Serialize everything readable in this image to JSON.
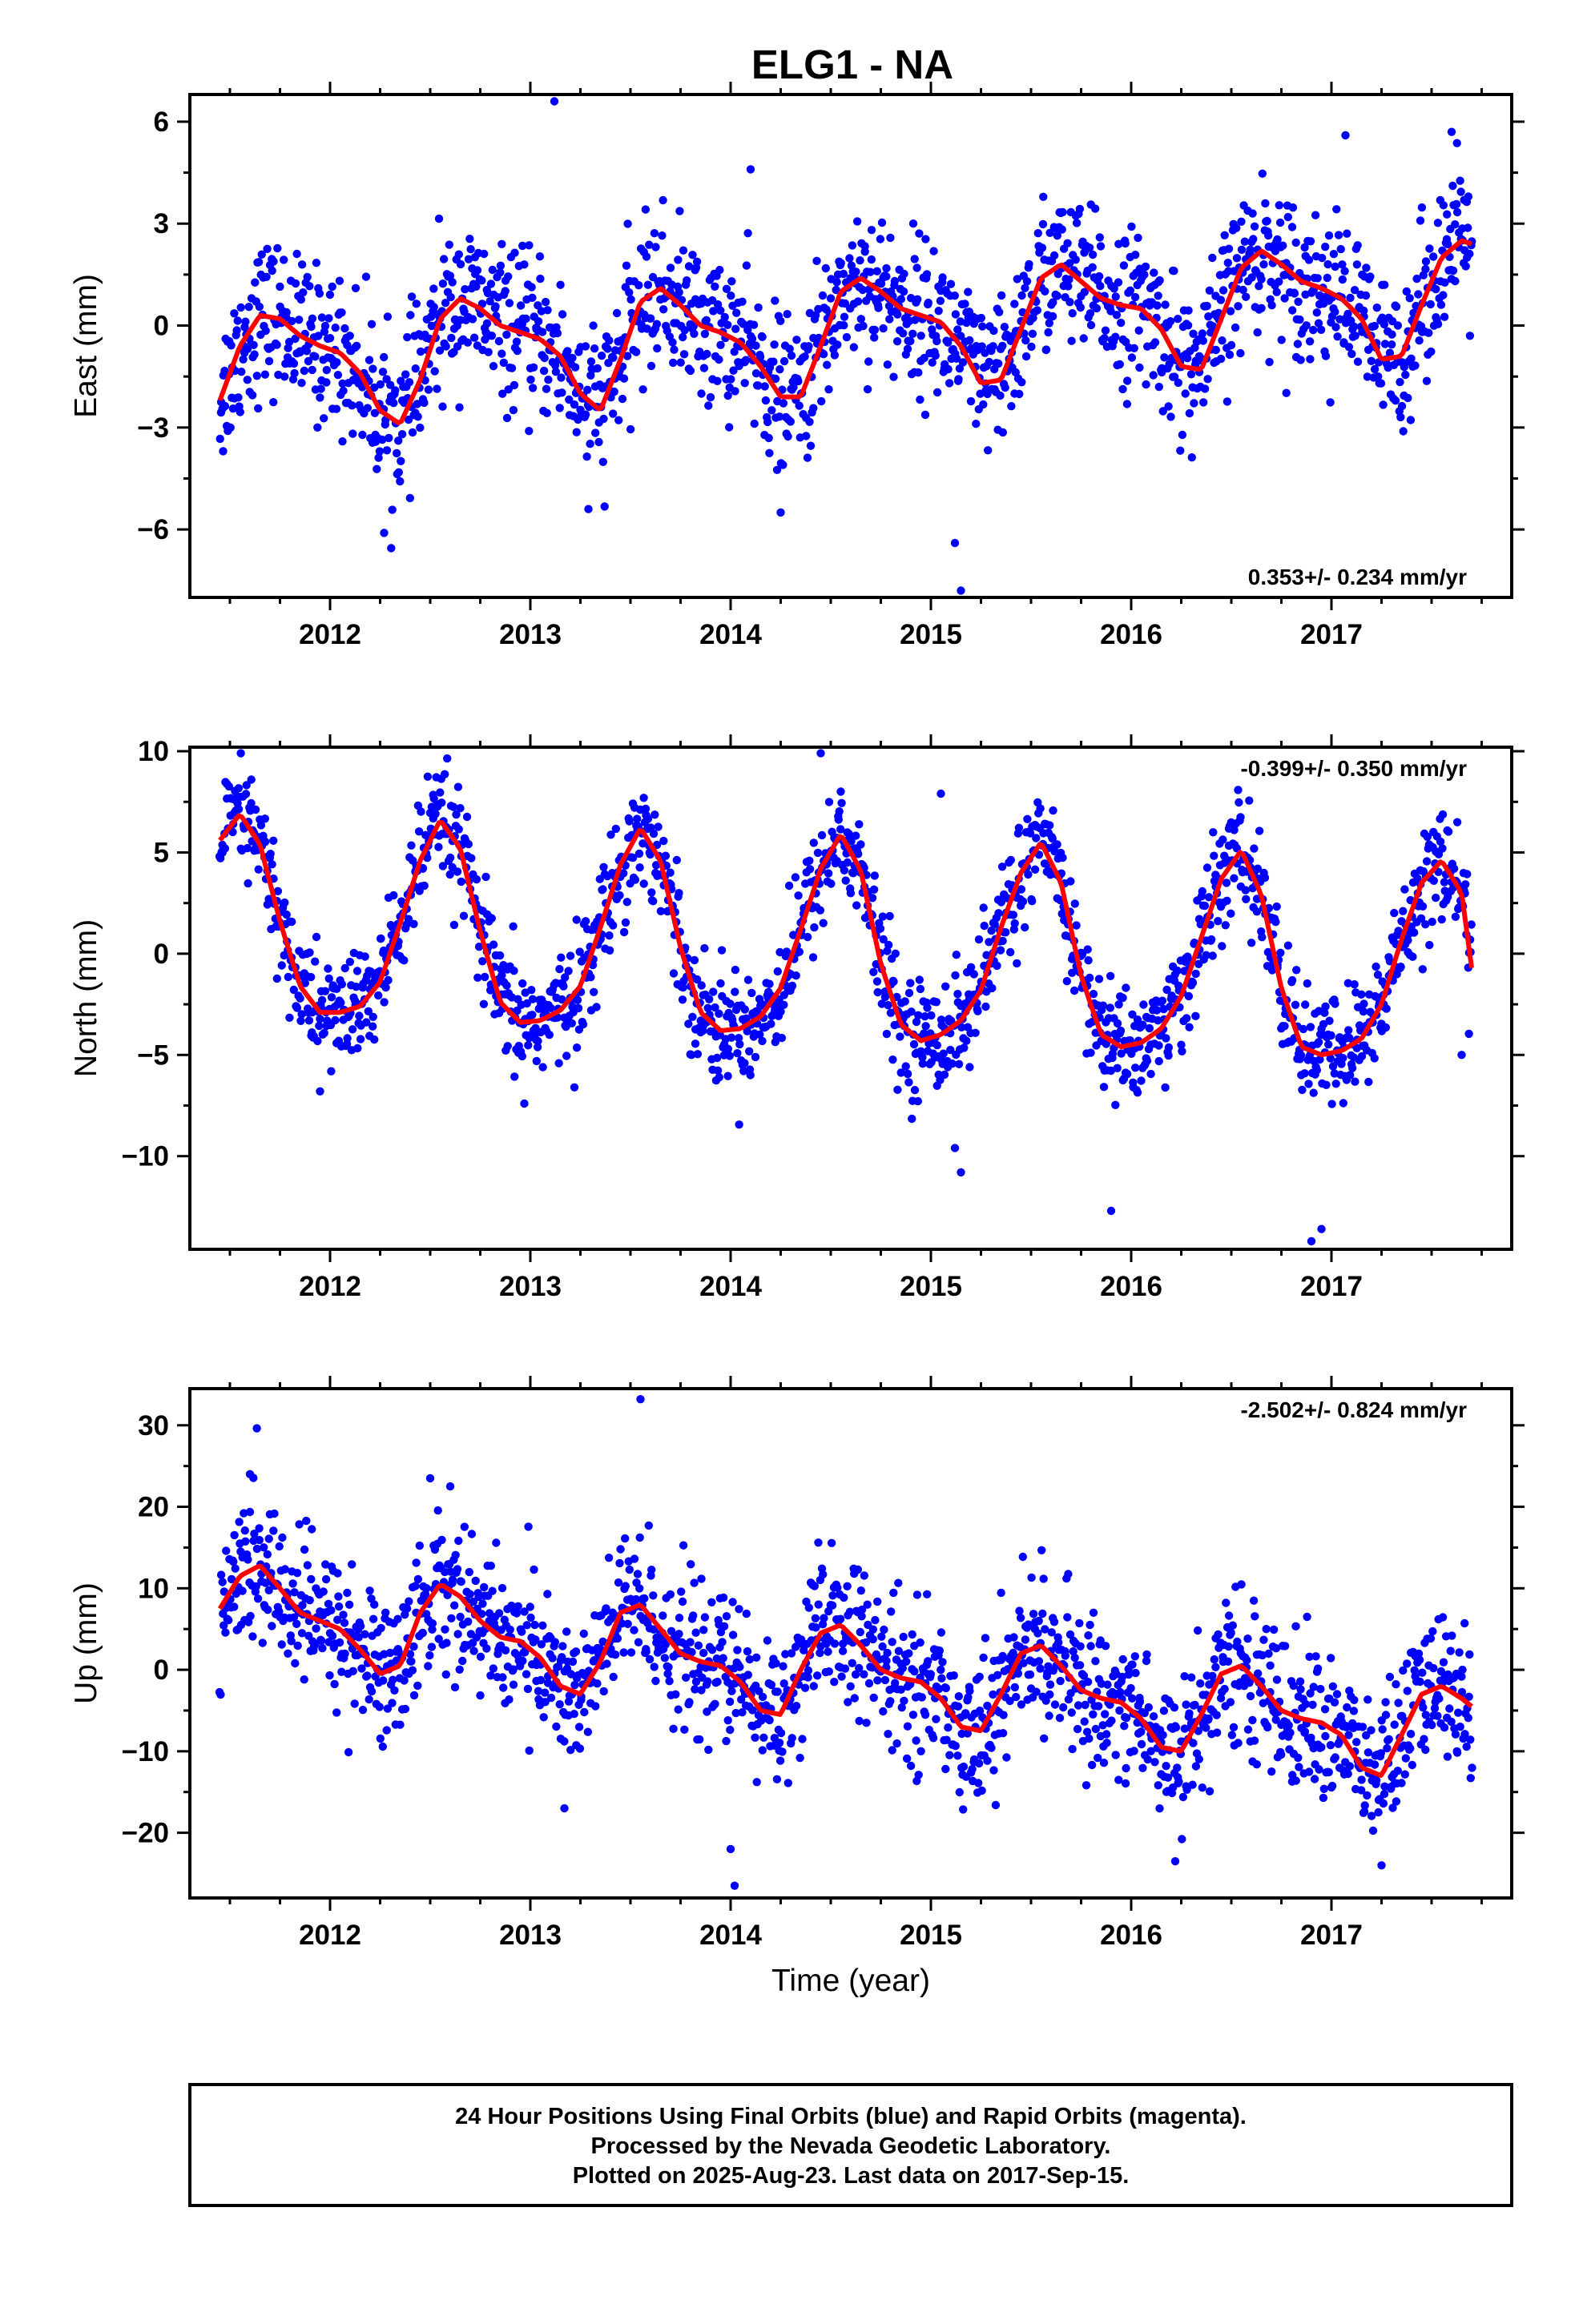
{
  "title": "ELG1 - NA",
  "colors": {
    "final_points": "#0000ff",
    "model_curve": "#ff0000",
    "frame": "#000000"
  },
  "chart_data": [
    {
      "type": "scatter",
      "name": "East",
      "ylabel": "East (mm)",
      "xlim": [
        2011.3,
        2017.9
      ],
      "ylim": [
        -8.0,
        6.8
      ],
      "xticks": [
        2012,
        2013,
        2014,
        2015,
        2016,
        2017
      ],
      "yticks": [
        -6,
        -3,
        0,
        3,
        6
      ],
      "tick_labels": [
        "−6",
        "−3",
        "0",
        "3",
        "6"
      ],
      "x_tick_labels": [
        "2012",
        "2013",
        "2014",
        "2015",
        "2016",
        "2017"
      ],
      "rate": "0.353+/- 0.234 mm/yr",
      "model": {
        "x": [
          2011.45,
          2011.55,
          2011.65,
          2011.75,
          2011.85,
          2011.95,
          2012.05,
          2012.15,
          2012.25,
          2012.35,
          2012.45,
          2012.55,
          2012.65,
          2012.75,
          2012.85,
          2012.95,
          2013.05,
          2013.15,
          2013.25,
          2013.35,
          2013.45,
          2013.55,
          2013.65,
          2013.75,
          2013.85,
          2013.95,
          2014.05,
          2014.15,
          2014.25,
          2014.35,
          2014.45,
          2014.55,
          2014.65,
          2014.75,
          2014.85,
          2014.95,
          2015.05,
          2015.15,
          2015.25,
          2015.35,
          2015.45,
          2015.55,
          2015.65,
          2015.75,
          2015.85,
          2015.95,
          2016.05,
          2016.15,
          2016.25,
          2016.35,
          2016.45,
          2016.55,
          2016.65,
          2016.75,
          2016.85,
          2016.95,
          2017.05,
          2017.15,
          2017.25,
          2017.35,
          2017.45,
          2017.55,
          2017.65,
          2017.7
        ],
        "y": [
          -2.2,
          -0.6,
          0.3,
          0.2,
          -0.3,
          -0.6,
          -0.8,
          -1.4,
          -2.5,
          -2.9,
          -1.6,
          0.2,
          0.8,
          0.5,
          0.0,
          -0.2,
          -0.4,
          -0.9,
          -2.0,
          -2.5,
          -1.0,
          0.7,
          1.1,
          0.6,
          0.0,
          -0.2,
          -0.5,
          -1.2,
          -2.1,
          -2.1,
          -0.6,
          1.0,
          1.4,
          1.0,
          0.5,
          0.3,
          0.1,
          -0.6,
          -1.7,
          -1.6,
          -0.1,
          1.4,
          1.8,
          1.3,
          0.8,
          0.6,
          0.5,
          -0.1,
          -1.2,
          -1.3,
          0.2,
          1.7,
          2.2,
          1.8,
          1.3,
          1.1,
          0.8,
          0.2,
          -1.0,
          -0.9,
          0.6,
          2.0,
          2.5,
          2.4
        ]
      },
      "points_summary": {
        "model_key": "model",
        "spread": 1.1,
        "outliers": [
          [
            2013.12,
            6.6
          ],
          [
            2014.1,
            4.6
          ],
          [
            2014.25,
            -5.5
          ],
          [
            2015.15,
            -7.8
          ],
          [
            2015.12,
            -6.4
          ],
          [
            2017.07,
            5.6
          ],
          [
            2012.27,
            -6.1
          ],
          [
            2013.29,
            -5.4
          ],
          [
            2017.6,
            5.7
          ]
        ]
      }
    },
    {
      "type": "scatter",
      "name": "North",
      "ylabel": "North (mm)",
      "xlim": [
        2011.3,
        2017.9
      ],
      "ylim": [
        -14.6,
        10.2
      ],
      "xticks": [
        2012,
        2013,
        2014,
        2015,
        2016,
        2017
      ],
      "yticks": [
        -10,
        -5,
        0,
        5,
        10
      ],
      "tick_labels": [
        "−10",
        "−5",
        "0",
        "5",
        "10"
      ],
      "x_tick_labels": [
        "2012",
        "2013",
        "2014",
        "2015",
        "2016",
        "2017"
      ],
      "rate": "-0.399+/- 0.350 mm/yr",
      "model": {
        "x": [
          2011.45,
          2011.55,
          2011.65,
          2011.75,
          2011.85,
          2011.95,
          2012.05,
          2012.15,
          2012.25,
          2012.35,
          2012.45,
          2012.55,
          2012.65,
          2012.75,
          2012.85,
          2012.95,
          2013.05,
          2013.15,
          2013.25,
          2013.35,
          2013.45,
          2013.55,
          2013.65,
          2013.75,
          2013.85,
          2013.95,
          2014.05,
          2014.15,
          2014.25,
          2014.35,
          2014.45,
          2014.55,
          2014.65,
          2014.75,
          2014.85,
          2014.95,
          2015.05,
          2015.15,
          2015.25,
          2015.35,
          2015.45,
          2015.55,
          2015.65,
          2015.75,
          2015.85,
          2015.95,
          2016.05,
          2016.15,
          2016.25,
          2016.35,
          2016.45,
          2016.55,
          2016.65,
          2016.75,
          2016.85,
          2016.95,
          2017.05,
          2017.15,
          2017.25,
          2017.35,
          2017.45,
          2017.55,
          2017.65,
          2017.7
        ],
        "y": [
          5.6,
          6.9,
          5.4,
          1.6,
          -1.6,
          -2.9,
          -2.9,
          -2.6,
          -1.4,
          1.5,
          4.6,
          6.6,
          5.2,
          1.1,
          -2.4,
          -3.4,
          -3.3,
          -2.8,
          -1.6,
          1.3,
          4.4,
          6.2,
          4.6,
          0.3,
          -2.9,
          -3.8,
          -3.7,
          -3.1,
          -1.7,
          1.2,
          4.2,
          5.9,
          4.1,
          -0.5,
          -3.5,
          -4.3,
          -4.0,
          -3.3,
          -1.8,
          1.3,
          4.0,
          5.5,
          3.5,
          -1.1,
          -4.0,
          -4.6,
          -4.4,
          -3.7,
          -2.1,
          0.8,
          3.7,
          5.1,
          2.9,
          -1.7,
          -4.6,
          -5.0,
          -4.8,
          -4.2,
          -2.5,
          0.7,
          3.5,
          4.6,
          3.0,
          -0.7
        ]
      },
      "points_summary": {
        "model_key": "model",
        "spread": 1.4,
        "outliers": [
          [
            2015.15,
            -10.8
          ],
          [
            2015.12,
            -9.6
          ],
          [
            2016.9,
            -14.2
          ],
          [
            2016.95,
            -13.6
          ],
          [
            2015.9,
            -12.7
          ],
          [
            2014.45,
            9.9
          ],
          [
            2012.97,
            -7.4
          ],
          [
            2011.95,
            -6.8
          ],
          [
            2017.65,
            -5.0
          ],
          [
            2015.05,
            7.9
          ]
        ]
      }
    },
    {
      "type": "scatter",
      "name": "Up",
      "ylabel": "Up (mm)",
      "xlabel": "Time (year)",
      "xlim": [
        2011.3,
        2017.9
      ],
      "ylim": [
        -28.0,
        34.5
      ],
      "xticks": [
        2012,
        2013,
        2014,
        2015,
        2016,
        2017
      ],
      "yticks": [
        -20,
        -10,
        0,
        10,
        20,
        30
      ],
      "tick_labels": [
        "−20",
        "−10",
        "0",
        "10",
        "20",
        "30"
      ],
      "x_tick_labels": [
        "2012",
        "2013",
        "2014",
        "2015",
        "2016",
        "2017"
      ],
      "rate": "-2.502+/- 0.824 mm/yr",
      "model": {
        "x": [
          2011.45,
          2011.55,
          2011.65,
          2011.75,
          2011.85,
          2011.95,
          2012.05,
          2012.15,
          2012.25,
          2012.35,
          2012.45,
          2012.55,
          2012.65,
          2012.75,
          2012.85,
          2012.95,
          2013.05,
          2013.15,
          2013.25,
          2013.35,
          2013.45,
          2013.55,
          2013.65,
          2013.75,
          2013.85,
          2013.95,
          2014.05,
          2014.15,
          2014.25,
          2014.35,
          2014.45,
          2014.55,
          2014.65,
          2014.75,
          2014.85,
          2014.95,
          2015.05,
          2015.15,
          2015.25,
          2015.35,
          2015.45,
          2015.55,
          2015.65,
          2015.75,
          2015.85,
          2015.95,
          2016.05,
          2016.15,
          2016.25,
          2016.35,
          2016.45,
          2016.55,
          2016.65,
          2016.75,
          2016.85,
          2016.95,
          2017.05,
          2017.15,
          2017.25,
          2017.35,
          2017.45,
          2017.55,
          2017.65,
          2017.7
        ],
        "y": [
          7.5,
          11.5,
          12.8,
          10.0,
          7.0,
          6.0,
          5.0,
          2.5,
          -0.5,
          0.5,
          7.0,
          10.5,
          9.0,
          6.0,
          4.0,
          3.5,
          1.5,
          -2.0,
          -3.0,
          1.0,
          7.0,
          8.0,
          5.0,
          2.0,
          1.0,
          0.5,
          -1.5,
          -5.0,
          -5.5,
          0.0,
          4.5,
          5.5,
          3.0,
          0.0,
          -1.0,
          -1.5,
          -3.5,
          -7.0,
          -7.5,
          -3.0,
          2.0,
          3.0,
          0.5,
          -2.5,
          -3.5,
          -4.0,
          -6.0,
          -9.5,
          -10.0,
          -5.5,
          -0.5,
          0.5,
          -2.0,
          -5.0,
          -6.0,
          -6.5,
          -8.0,
          -12.0,
          -13.0,
          -8.0,
          -3.0,
          -2.0,
          -3.5,
          -4.5
        ]
      },
      "points_summary": {
        "model_key": "model",
        "spread": 4.5,
        "outliers": [
          [
            2013.55,
            33.2
          ],
          [
            2014.02,
            -26.5
          ],
          [
            2011.6,
            24.0
          ],
          [
            2012.5,
            23.5
          ],
          [
            2012.6,
            22.5
          ],
          [
            2014.0,
            -22.0
          ],
          [
            2013.17,
            -17.0
          ],
          [
            2016.22,
            -23.5
          ],
          [
            2017.25,
            -24.0
          ]
        ]
      }
    }
  ],
  "footer": {
    "line1": "24 Hour Positions Using Final Orbits (blue) and Rapid Orbits (magenta).",
    "line2": "Processed by the Nevada Geodetic Laboratory.",
    "line3": "Plotted on 2025-Aug-23. Last data on 2017-Sep-15."
  }
}
